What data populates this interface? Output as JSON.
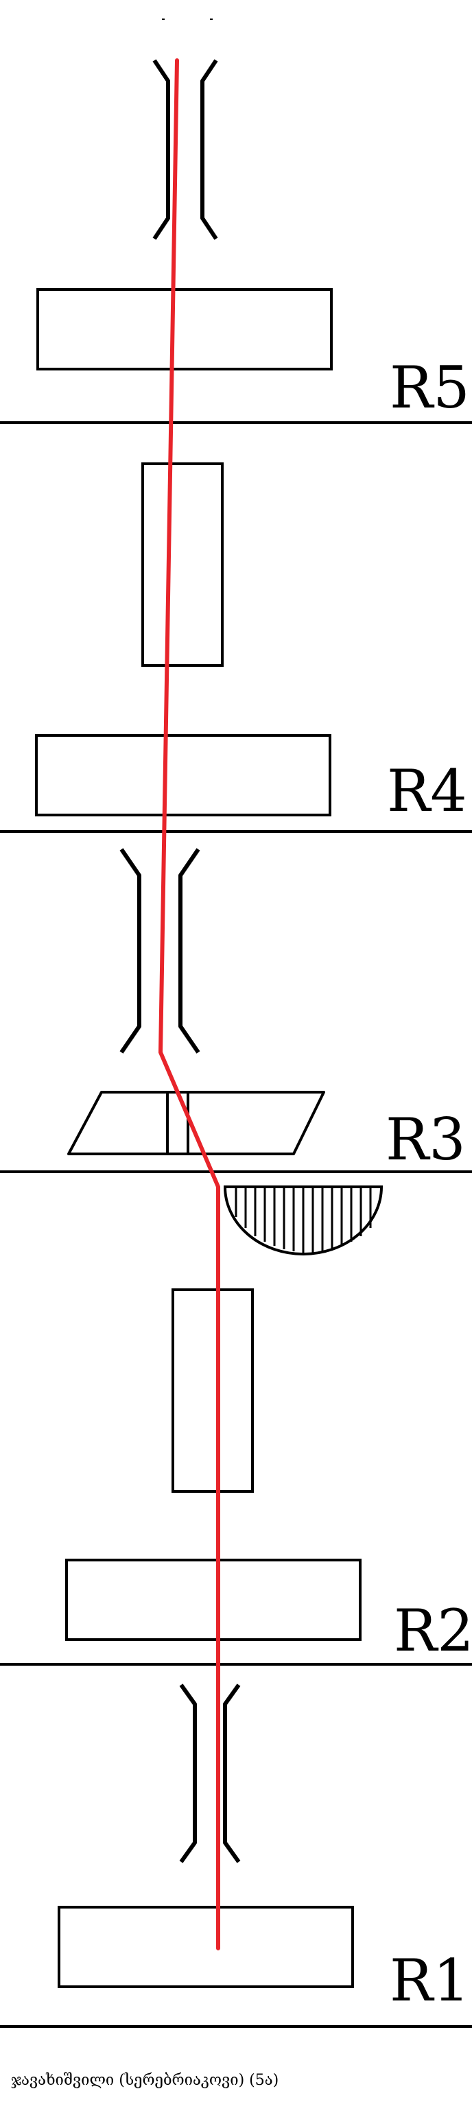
{
  "rows": [
    {
      "label": "R5"
    },
    {
      "label": "R4"
    },
    {
      "label": "R3"
    },
    {
      "label": "R2"
    },
    {
      "label": "R1"
    }
  ],
  "caption": "ჯავახიშვილი (სერებრიაკოვი) (5ა)",
  "colors": {
    "line": "#000000",
    "path": "#e8242a",
    "background": "#ffffff"
  }
}
